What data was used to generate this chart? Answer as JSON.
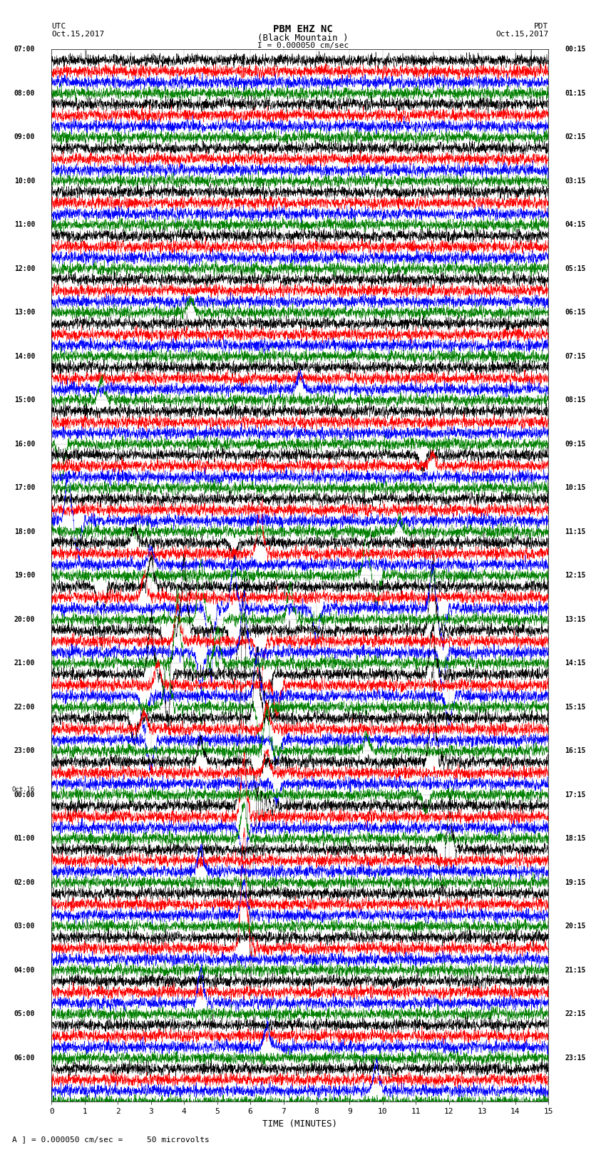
{
  "title_line1": "PBM EHZ NC",
  "title_line2": "(Black Mountain )",
  "scale_text": "I = 0.000050 cm/sec",
  "left_label_top": "UTC",
  "left_label_date": "Oct.15,2017",
  "right_label_top": "PDT",
  "right_label_date": "Oct.15,2017",
  "bottom_label": "TIME (MINUTES)",
  "caption": "A ] = 0.000050 cm/sec =     50 microvolts",
  "x_ticks": [
    0,
    1,
    2,
    3,
    4,
    5,
    6,
    7,
    8,
    9,
    10,
    11,
    12,
    13,
    14,
    15
  ],
  "trace_colors": [
    "black",
    "red",
    "blue",
    "green"
  ],
  "bg_color": "#ffffff",
  "left_times_utc": [
    "07:00",
    "08:00",
    "09:00",
    "10:00",
    "11:00",
    "12:00",
    "13:00",
    "14:00",
    "15:00",
    "16:00",
    "17:00",
    "18:00",
    "19:00",
    "20:00",
    "21:00",
    "22:00",
    "23:00",
    "Oct.16\n00:00",
    "01:00",
    "02:00",
    "03:00",
    "04:00",
    "05:00",
    "06:00"
  ],
  "right_times_pdt": [
    "00:15",
    "01:15",
    "02:15",
    "03:15",
    "04:15",
    "05:15",
    "06:15",
    "07:15",
    "08:15",
    "09:15",
    "10:15",
    "11:15",
    "12:15",
    "13:15",
    "14:15",
    "15:15",
    "16:15",
    "17:15",
    "18:15",
    "19:15",
    "20:15",
    "21:15",
    "22:15",
    "23:15"
  ],
  "num_row_groups": 24,
  "traces_per_group": 4,
  "noise_seed": 42,
  "fig_width": 8.5,
  "fig_height": 16.13,
  "dpi": 100
}
